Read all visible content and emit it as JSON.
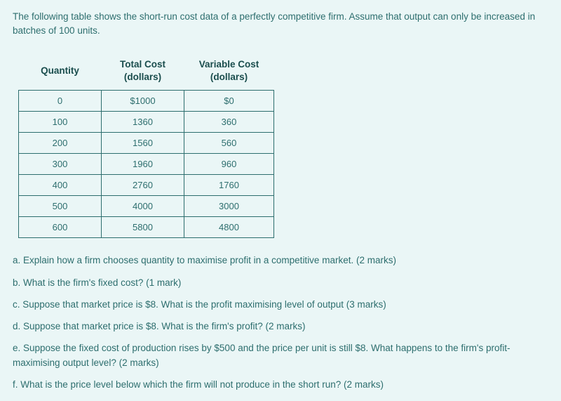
{
  "intro": "The following table shows the short-run cost data of a perfectly competitive firm. Assume that output can only be increased in batches of 100 units.",
  "table": {
    "headers": {
      "qty": "Quantity",
      "tc_main": "Total Cost",
      "tc_sub": "(dollars)",
      "vc_main": "Variable Cost",
      "vc_sub": "(dollars)"
    },
    "rows": [
      {
        "qty": "0",
        "tc": "$1000",
        "vc": "$0"
      },
      {
        "qty": "100",
        "tc": "1360",
        "vc": "360"
      },
      {
        "qty": "200",
        "tc": "1560",
        "vc": "560"
      },
      {
        "qty": "300",
        "tc": "1960",
        "vc": "960"
      },
      {
        "qty": "400",
        "tc": "2760",
        "vc": "1760"
      },
      {
        "qty": "500",
        "tc": "4000",
        "vc": "3000"
      },
      {
        "qty": "600",
        "tc": "5800",
        "vc": "4800"
      }
    ]
  },
  "questions": {
    "a": "a. Explain how a firm chooses quantity to maximise profit in a competitive market. (2 marks)",
    "b": "b. What is the firm's fixed cost? (1 mark)",
    "c": "c. Suppose that market price is $8. What is the profit maximising level of output (3 marks)",
    "d": "d. Suppose that market price is $8. What is the firm's profit? (2 marks)",
    "e": "e. Suppose the fixed cost of production rises by $500 and the price per unit is still $8. What happens to the firm's profit-maximising output level? (2 marks)",
    "f": "f. What is the price level below which the firm will not produce in the short run? (2 marks)"
  },
  "style": {
    "background_color": "#eaf6f6",
    "text_color": "#2d6e6e",
    "header_color": "#1a4d4d",
    "border_color": "#2d6e6e",
    "font_size_body": 13.5,
    "font_size_cell": 13
  }
}
